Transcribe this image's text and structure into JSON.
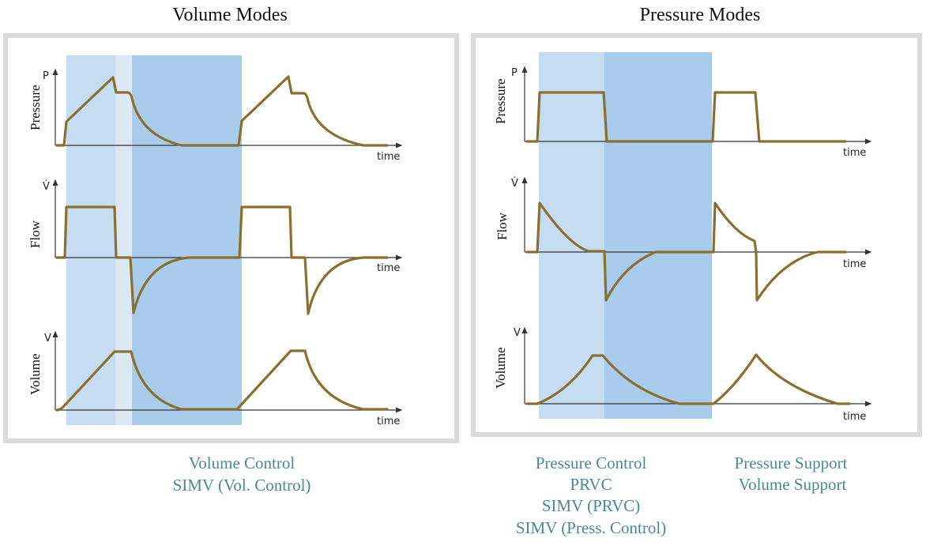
{
  "left": {
    "title": "Volume Modes",
    "plots": {
      "pressure": "Pressure",
      "flow": "Flow",
      "volume": "Volume"
    },
    "axis_symbols": {
      "p": "P",
      "flow": "V̇",
      "v": "V"
    },
    "time_label": "time",
    "captions": [
      "Volume Control",
      "SIMV (Vol. Control)"
    ]
  },
  "right": {
    "title": "Pressure Modes",
    "plots": {
      "pressure": "Pressure",
      "flow": "Flow",
      "volume": "Volume"
    },
    "axis_symbols": {
      "p": "P",
      "flow": "V̇",
      "v": "V"
    },
    "time_label": "time",
    "captions_a": [
      "Pressure Control",
      "PRVC",
      "SIMV (PRVC)",
      "SIMV (Press. Control)"
    ],
    "captions_b": [
      "Pressure Support",
      "Volume Support"
    ]
  },
  "colors": {
    "inspiration": "#c6dcf1",
    "pause": "#dde8f5",
    "expiration": "#a9cbec",
    "curve": "#8a7030",
    "caption": "#4a8a8f"
  }
}
